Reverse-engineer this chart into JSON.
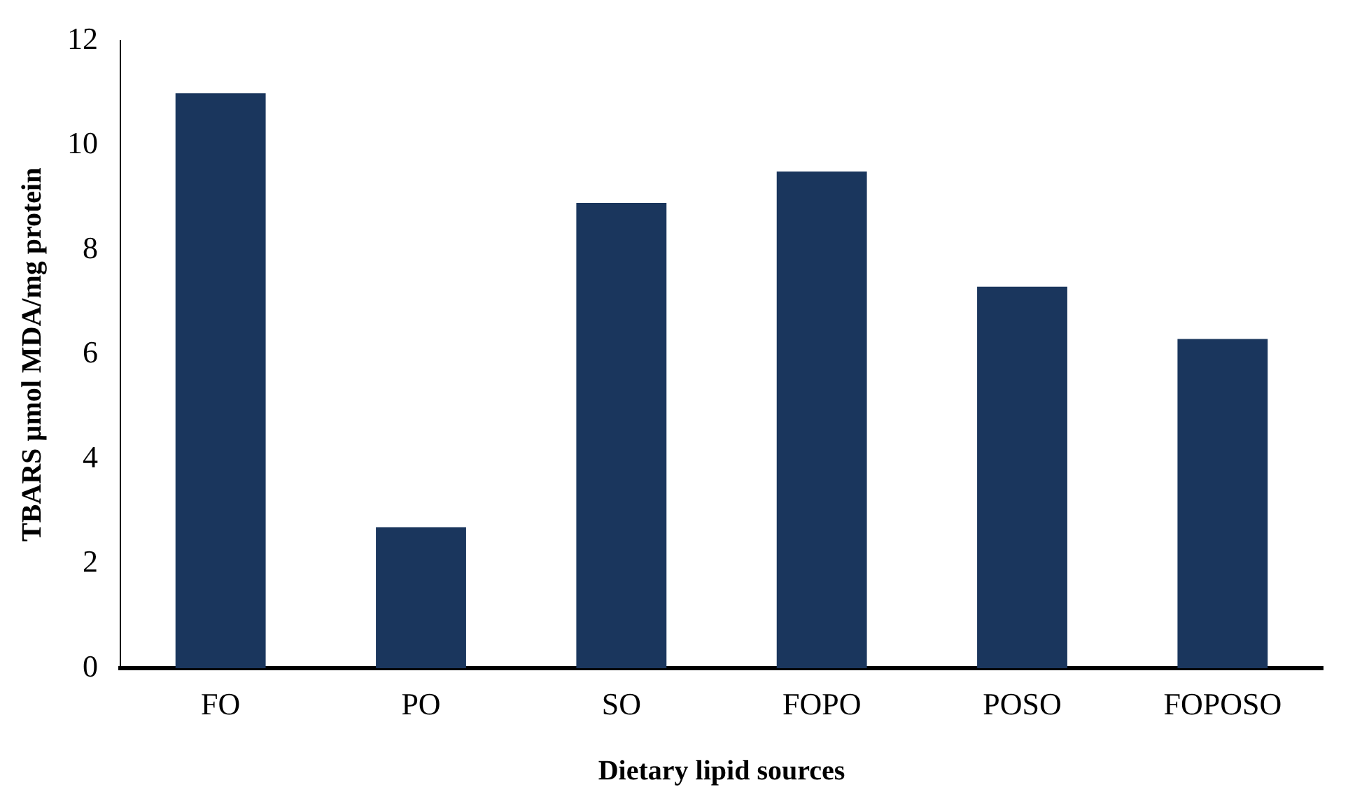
{
  "chart_data": {
    "type": "bar",
    "xlabel": "Dietary lipid sources",
    "ylabel": "TBARS µmol MDA/mg protein",
    "categories": [
      "FO",
      "PO",
      "SO",
      "FOPO",
      "POSO",
      "FOPOSO"
    ],
    "values": [
      11.0,
      2.7,
      8.9,
      9.5,
      7.3,
      6.3
    ],
    "color": "#1a365d",
    "ylim": [
      0,
      12
    ],
    "yticks": [
      0,
      2,
      4,
      6,
      8,
      10,
      12
    ],
    "grid": false,
    "legend": false
  }
}
